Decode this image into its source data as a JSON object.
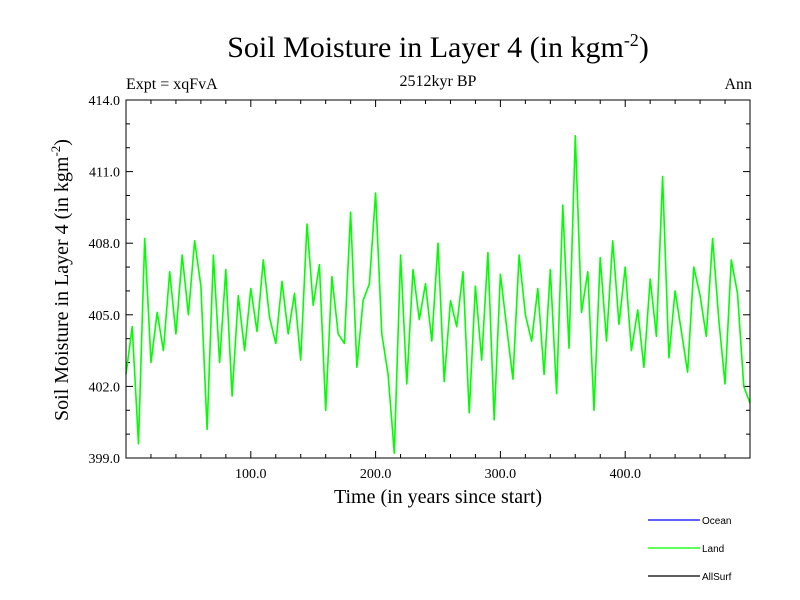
{
  "page": {
    "title": "Soil Moisture in Layer 4 (in kgm",
    "title_sup": "-2",
    "title_end": ")",
    "subtitle": "2512kyr BP",
    "expt": "Expt = xqFvA",
    "season": "Ann"
  },
  "chart_data": {
    "type": "line",
    "title": "Soil Moisture in Layer 4 (in kgm-2)",
    "subtitle": "2512kyr BP",
    "xlabel": "Time (in years since start)",
    "ylabel": "Soil Moisture in Layer 4 (in kgm-2)",
    "ylabel_main": "Soil Moisture in Layer 4 (in kgm",
    "ylabel_sup": "-2",
    "ylabel_end": ")",
    "xlim": [
      0,
      500
    ],
    "ylim": [
      399.0,
      414.0
    ],
    "xticks": [
      100,
      200,
      300,
      400
    ],
    "xtick_labels": [
      "100.0",
      "200.0",
      "300.0",
      "400.0"
    ],
    "yticks": [
      399,
      402,
      405,
      408,
      411,
      414
    ],
    "ytick_labels": [
      "399.0",
      "402.0",
      "405.0",
      "408.0",
      "411.0",
      "414.0"
    ],
    "legend": [
      {
        "name": "Ocean",
        "color": "#0000ff"
      },
      {
        "name": "Land",
        "color": "#00ff00"
      },
      {
        "name": "AllSurf",
        "color": "#000000"
      }
    ],
    "series": [
      {
        "name": "Land",
        "color": "#00ff00",
        "x": [
          0,
          5,
          10,
          15,
          20,
          25,
          30,
          35,
          40,
          45,
          50,
          55,
          60,
          65,
          70,
          75,
          80,
          85,
          90,
          95,
          100,
          105,
          110,
          115,
          120,
          125,
          130,
          135,
          140,
          145,
          150,
          155,
          160,
          165,
          170,
          175,
          180,
          185,
          190,
          195,
          200,
          205,
          210,
          215,
          220,
          225,
          230,
          235,
          240,
          245,
          250,
          255,
          260,
          265,
          270,
          275,
          280,
          285,
          290,
          295,
          300,
          305,
          310,
          315,
          320,
          325,
          330,
          335,
          340,
          345,
          350,
          355,
          360,
          365,
          370,
          375,
          380,
          385,
          390,
          395,
          400,
          405,
          410,
          415,
          420,
          425,
          430,
          435,
          440,
          445,
          450,
          455,
          460,
          465,
          470,
          475,
          480,
          485,
          490,
          495,
          500
        ],
        "values": [
          402.5,
          404.5,
          399.6,
          408.2,
          403.0,
          405.1,
          403.5,
          406.8,
          404.2,
          407.5,
          405.0,
          408.1,
          406.2,
          400.2,
          407.5,
          403.0,
          406.9,
          401.6,
          405.8,
          403.5,
          406.1,
          404.3,
          407.3,
          404.9,
          403.8,
          406.4,
          404.2,
          405.9,
          403.1,
          408.8,
          405.4,
          407.1,
          401.0,
          406.6,
          404.2,
          403.8,
          409.3,
          402.8,
          405.6,
          406.3,
          410.1,
          404.2,
          402.5,
          399.2,
          407.5,
          402.1,
          406.9,
          404.8,
          406.3,
          403.9,
          408.0,
          402.2,
          405.6,
          404.5,
          406.8,
          400.9,
          406.2,
          403.1,
          407.6,
          400.6,
          406.7,
          404.5,
          402.3,
          407.5,
          405.0,
          403.9,
          406.1,
          402.5,
          406.9,
          401.7,
          409.6,
          403.6,
          412.5,
          405.1,
          406.8,
          401.0,
          407.4,
          403.9,
          408.1,
          404.6,
          407.0,
          403.5,
          405.2,
          402.8,
          406.5,
          404.1,
          410.8,
          403.2,
          406.0,
          404.3,
          402.6,
          407.0,
          405.8,
          404.1,
          408.2,
          404.8,
          402.1,
          407.3,
          405.9,
          402.0,
          401.3
        ]
      }
    ]
  }
}
